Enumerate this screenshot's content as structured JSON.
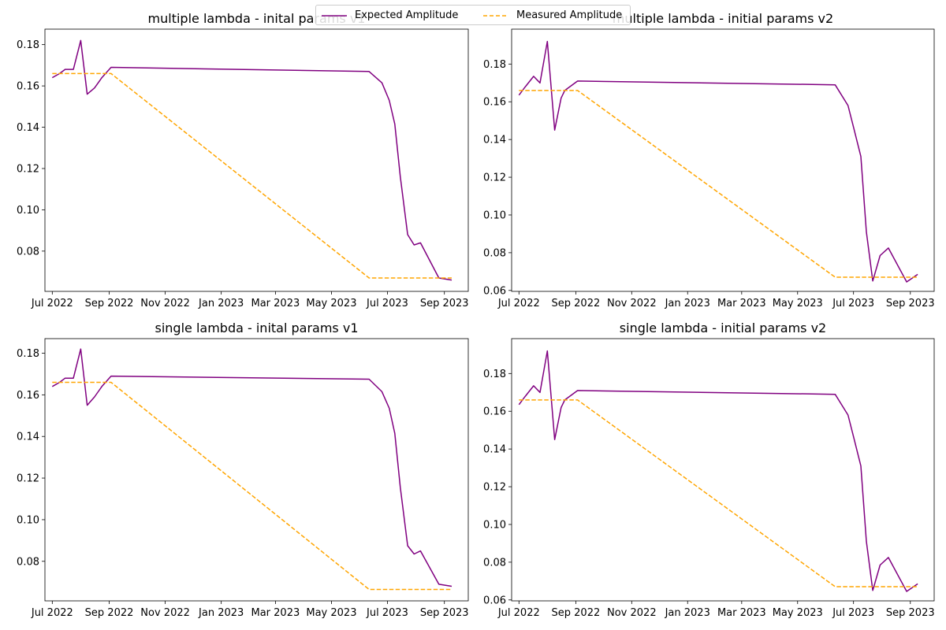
{
  "legend": {
    "expected_label": "Expected Amplitude",
    "measured_label": "Measured Amplitude",
    "expected_color": "#800080",
    "measured_color": "#ffa500",
    "placement": "top-center"
  },
  "chart_data": [
    {
      "type": "line",
      "title": "multiple lambda - inital params v1",
      "xlabel": "",
      "ylabel": "",
      "x_axis": "date",
      "xlim": [
        "2022-06-23",
        "2023-09-27"
      ],
      "ylim": [
        0.0605,
        0.1875
      ],
      "x_ticks": [
        "2022-07-01",
        "2022-09-01",
        "2022-11-01",
        "2023-01-01",
        "2023-03-01",
        "2023-05-01",
        "2023-07-01",
        "2023-09-01"
      ],
      "x_tick_labels": [
        "Jul 2022",
        "Sep 2022",
        "Nov 2022",
        "Jan 2023",
        "Mar 2023",
        "May 2023",
        "Jul 2023",
        "Sep 2023"
      ],
      "y_ticks": [
        0.08,
        0.1,
        0.12,
        0.14,
        0.16,
        0.18
      ],
      "y_tick_labels": [
        "0.08",
        "0.10",
        "0.12",
        "0.14",
        "0.16",
        "0.18"
      ],
      "grid": false,
      "series": [
        {
          "name": "Expected Amplitude",
          "style": "solid",
          "color": "#800080",
          "x": [
            "2022-07-01",
            "2022-07-09",
            "2022-07-15",
            "2022-07-24",
            "2022-08-01",
            "2022-08-08",
            "2022-08-16",
            "2022-08-24",
            "2022-09-03",
            "2023-06-11",
            "2023-06-25",
            "2023-07-03",
            "2023-07-09",
            "2023-07-15",
            "2023-07-23",
            "2023-07-30",
            "2023-08-06",
            "2023-08-26",
            "2023-09-09"
          ],
          "y": [
            0.164,
            0.166,
            0.168,
            0.168,
            0.182,
            0.156,
            0.159,
            0.164,
            0.169,
            0.167,
            0.1615,
            0.153,
            0.1415,
            0.116,
            0.088,
            0.083,
            0.084,
            0.067,
            0.066
          ]
        },
        {
          "name": "Measured Amplitude",
          "style": "dashed",
          "color": "#ffa500",
          "x": [
            "2022-07-01",
            "2022-09-03",
            "2023-06-11",
            "2023-09-09"
          ],
          "y": [
            0.166,
            0.166,
            0.067,
            0.067
          ]
        }
      ]
    },
    {
      "type": "line",
      "title": "multiple lambda - initial params v2",
      "xlabel": "",
      "ylabel": "",
      "x_axis": "date",
      "xlim": [
        "2022-06-23",
        "2023-09-27"
      ],
      "ylim": [
        0.0595,
        0.1985
      ],
      "x_ticks": [
        "2022-07-01",
        "2022-09-01",
        "2022-11-01",
        "2023-01-01",
        "2023-03-01",
        "2023-05-01",
        "2023-07-01",
        "2023-09-01"
      ],
      "x_tick_labels": [
        "Jul 2022",
        "Sep 2022",
        "Nov 2022",
        "Jan 2023",
        "Mar 2023",
        "May 2023",
        "Jul 2023",
        "Sep 2023"
      ],
      "y_ticks": [
        0.06,
        0.08,
        0.1,
        0.12,
        0.14,
        0.16,
        0.18
      ],
      "y_tick_labels": [
        "0.06",
        "0.08",
        "0.10",
        "0.12",
        "0.14",
        "0.16",
        "0.18"
      ],
      "grid": false,
      "series": [
        {
          "name": "Expected Amplitude",
          "style": "solid",
          "color": "#800080",
          "x": [
            "2022-07-01",
            "2022-07-08",
            "2022-07-17",
            "2022-07-24",
            "2022-08-01",
            "2022-08-09",
            "2022-08-16",
            "2022-08-20",
            "2022-09-03",
            "2023-06-11",
            "2023-06-25",
            "2023-07-01",
            "2023-07-09",
            "2023-07-15",
            "2023-07-22",
            "2023-07-30",
            "2023-08-08",
            "2023-08-28",
            "2023-09-09"
          ],
          "y": [
            0.1635,
            0.168,
            0.1735,
            0.17,
            0.192,
            0.145,
            0.162,
            0.166,
            0.171,
            0.169,
            0.158,
            0.1465,
            0.131,
            0.091,
            0.065,
            0.0785,
            0.0825,
            0.0645,
            0.0685
          ]
        },
        {
          "name": "Measured Amplitude",
          "style": "dashed",
          "color": "#ffa500",
          "x": [
            "2022-07-01",
            "2022-09-03",
            "2023-06-11",
            "2023-09-09"
          ],
          "y": [
            0.166,
            0.166,
            0.067,
            0.067
          ]
        }
      ]
    },
    {
      "type": "line",
      "title": "single lambda - inital params v1",
      "xlabel": "",
      "ylabel": "",
      "x_axis": "date",
      "xlim": [
        "2022-06-23",
        "2023-09-27"
      ],
      "ylim": [
        0.061,
        0.187
      ],
      "x_ticks": [
        "2022-07-01",
        "2022-09-01",
        "2022-11-01",
        "2023-01-01",
        "2023-03-01",
        "2023-05-01",
        "2023-07-01",
        "2023-09-01"
      ],
      "x_tick_labels": [
        "Jul 2022",
        "Sep 2022",
        "Nov 2022",
        "Jan 2023",
        "Mar 2023",
        "May 2023",
        "Jul 2023",
        "Sep 2023"
      ],
      "y_ticks": [
        0.08,
        0.1,
        0.12,
        0.14,
        0.16,
        0.18
      ],
      "y_tick_labels": [
        "0.08",
        "0.10",
        "0.12",
        "0.14",
        "0.16",
        "0.18"
      ],
      "grid": false,
      "series": [
        {
          "name": "Expected Amplitude",
          "style": "solid",
          "color": "#800080",
          "x": [
            "2022-07-01",
            "2022-07-09",
            "2022-07-15",
            "2022-07-24",
            "2022-08-01",
            "2022-08-08",
            "2022-08-16",
            "2022-08-24",
            "2022-09-03",
            "2023-06-11",
            "2023-06-25",
            "2023-07-03",
            "2023-07-09",
            "2023-07-15",
            "2023-07-23",
            "2023-07-30",
            "2023-08-06",
            "2023-08-26",
            "2023-09-09"
          ],
          "y": [
            0.164,
            0.166,
            0.168,
            0.168,
            0.182,
            0.155,
            0.159,
            0.164,
            0.169,
            0.1675,
            0.1615,
            0.1535,
            0.1415,
            0.1155,
            0.0875,
            0.0835,
            0.085,
            0.069,
            0.068
          ]
        },
        {
          "name": "Measured Amplitude",
          "style": "dashed",
          "color": "#ffa500",
          "x": [
            "2022-07-01",
            "2022-09-03",
            "2023-06-11",
            "2023-09-09"
          ],
          "y": [
            0.166,
            0.166,
            0.0665,
            0.0665
          ]
        }
      ]
    },
    {
      "type": "line",
      "title": "single lambda - initial params v2",
      "xlabel": "",
      "ylabel": "",
      "x_axis": "date",
      "xlim": [
        "2022-06-23",
        "2023-09-27"
      ],
      "ylim": [
        0.0595,
        0.1985
      ],
      "x_ticks": [
        "2022-07-01",
        "2022-09-01",
        "2022-11-01",
        "2023-01-01",
        "2023-03-01",
        "2023-05-01",
        "2023-07-01",
        "2023-09-01"
      ],
      "x_tick_labels": [
        "Jul 2022",
        "Sep 2022",
        "Nov 2022",
        "Jan 2023",
        "Mar 2023",
        "May 2023",
        "Jul 2023",
        "Sep 2023"
      ],
      "y_ticks": [
        0.06,
        0.08,
        0.1,
        0.12,
        0.14,
        0.16,
        0.18
      ],
      "y_tick_labels": [
        "0.06",
        "0.08",
        "0.10",
        "0.12",
        "0.14",
        "0.16",
        "0.18"
      ],
      "grid": false,
      "series": [
        {
          "name": "Expected Amplitude",
          "style": "solid",
          "color": "#800080",
          "x": [
            "2022-07-01",
            "2022-07-08",
            "2022-07-17",
            "2022-07-24",
            "2022-08-01",
            "2022-08-09",
            "2022-08-16",
            "2022-08-20",
            "2022-09-03",
            "2023-06-11",
            "2023-06-25",
            "2023-07-01",
            "2023-07-09",
            "2023-07-15",
            "2023-07-22",
            "2023-07-30",
            "2023-08-08",
            "2023-08-28",
            "2023-09-09"
          ],
          "y": [
            0.1635,
            0.168,
            0.1735,
            0.17,
            0.192,
            0.145,
            0.162,
            0.166,
            0.171,
            0.169,
            0.158,
            0.1465,
            0.131,
            0.091,
            0.065,
            0.0785,
            0.0825,
            0.0645,
            0.0685
          ]
        },
        {
          "name": "Measured Amplitude",
          "style": "dashed",
          "color": "#ffa500",
          "x": [
            "2022-07-01",
            "2022-09-03",
            "2023-06-11",
            "2023-09-09"
          ],
          "y": [
            0.166,
            0.166,
            0.067,
            0.067
          ]
        }
      ]
    }
  ]
}
